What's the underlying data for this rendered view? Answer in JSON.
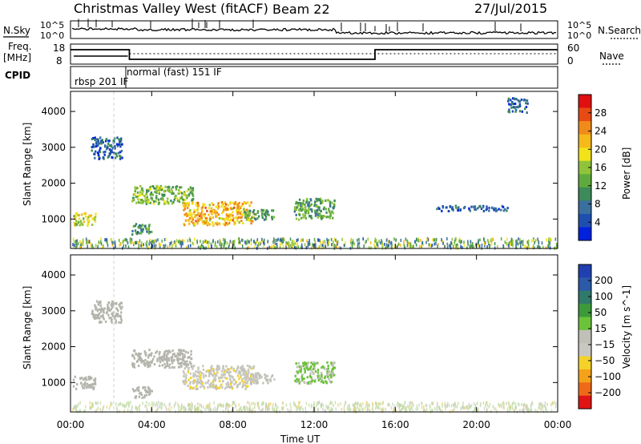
{
  "header": {
    "title": "Christmas Valley West (fitACF)",
    "beam": "Beam 22",
    "date": "27/Jul/2015"
  },
  "strip_labels": {
    "n_sky": "N.Sky",
    "n_search": "N.Search",
    "freq_top": "Freq.",
    "freq_unit": "[MHz]",
    "nave": "Nave",
    "cpid": "CPID"
  },
  "strip_ticks": {
    "noise_left_top": "10^5",
    "noise_left_bottom": "10^0",
    "noise_right_top": "10^5",
    "noise_right_bottom": "10^0",
    "freq_top": "18",
    "freq_bottom": "8",
    "nave_top": "60",
    "nave_bottom": "0"
  },
  "cpid_labels": [
    "rbsp 201 IF",
    "normal (fast) 151 IF"
  ],
  "colors": {
    "scale_power": [
      "#0022dd",
      "#1e4fb0",
      "#3a6fa0",
      "#3d8a5a",
      "#5faa3c",
      "#8fc43a",
      "#f2e21a",
      "#f5b91a",
      "#f08a1a",
      "#e84a14",
      "#e01010"
    ],
    "scale_velocity": [
      "#2040b0",
      "#2a5aa8",
      "#2f7a6a",
      "#3d9a3a",
      "#6cc23a",
      "#c0c0b8",
      "#c8c8c0",
      "#f5d22a",
      "#f5a21a",
      "#ef6a18",
      "#e01414"
    ],
    "ground_scatter": "#b4b4ac"
  },
  "chart_data": [
    {
      "type": "heatmap",
      "title": "Power",
      "xlabel": "",
      "ylabel": "Slant Range [km]",
      "x_ticks": [
        "00:00",
        "04:00",
        "08:00",
        "12:00",
        "16:00",
        "20:00",
        "00:00"
      ],
      "xlim_hours": [
        0,
        24
      ],
      "y_ticks": [
        1000,
        2000,
        3000,
        4000
      ],
      "ylim": [
        180,
        4560
      ],
      "colorbar_label": "Power [dB]",
      "colorbar_ticks": [
        4,
        8,
        12,
        16,
        20,
        24,
        28
      ],
      "colorbar_range": [
        0,
        32
      ],
      "regions": [
        {
          "t0": 0.1,
          "t1": 1.2,
          "r0": 850,
          "r1": 1200,
          "level": 18
        },
        {
          "t0": 1.0,
          "t1": 2.5,
          "r0": 2700,
          "r1": 3300,
          "level": 6
        },
        {
          "t0": 3.0,
          "t1": 6.0,
          "r0": 1450,
          "r1": 1950,
          "level": 14
        },
        {
          "t0": 5.5,
          "t1": 9.0,
          "r0": 850,
          "r1": 1500,
          "level": 22
        },
        {
          "t0": 8.5,
          "t1": 10.0,
          "r0": 1000,
          "r1": 1300,
          "level": 12
        },
        {
          "t0": 11.0,
          "t1": 13.0,
          "r0": 1000,
          "r1": 1600,
          "level": 12
        },
        {
          "t0": 3.0,
          "t1": 4.0,
          "r0": 600,
          "r1": 900,
          "level": 10
        },
        {
          "t0": 18.0,
          "t1": 21.5,
          "r0": 1250,
          "r1": 1400,
          "level": 6
        },
        {
          "t0": 21.5,
          "t1": 22.5,
          "r0": 4000,
          "r1": 4400,
          "level": 6
        }
      ],
      "ground_band": {
        "r0": 200,
        "r1": 400,
        "level": 8
      }
    },
    {
      "type": "heatmap",
      "title": "Velocity",
      "xlabel": "Time UT",
      "ylabel": "Slant Range [km]",
      "x_ticks": [
        "00:00",
        "04:00",
        "08:00",
        "12:00",
        "16:00",
        "20:00",
        "00:00"
      ],
      "xlim_hours": [
        0,
        24
      ],
      "y_ticks": [
        1000,
        2000,
        3000,
        4000
      ],
      "ylim": [
        180,
        4560
      ],
      "colorbar_label": "Velocity [m s^-1]",
      "colorbar_ticks": [
        200,
        100,
        50,
        15,
        -15,
        -50,
        -100,
        -200
      ],
      "regions": [
        {
          "t0": 0.1,
          "t1": 1.2,
          "r0": 850,
          "r1": 1200,
          "level": 0
        },
        {
          "t0": 1.0,
          "t1": 2.5,
          "r0": 2700,
          "r1": 3300,
          "level": 0
        },
        {
          "t0": 3.0,
          "t1": 6.0,
          "r0": 1450,
          "r1": 1950,
          "level": 0
        },
        {
          "t0": 5.5,
          "t1": 9.0,
          "r0": 850,
          "r1": 1500,
          "level": -40
        },
        {
          "t0": 8.5,
          "t1": 10.0,
          "r0": 1000,
          "r1": 1300,
          "level": -20
        },
        {
          "t0": 11.0,
          "t1": 13.0,
          "r0": 1000,
          "r1": 1600,
          "level": 30
        },
        {
          "t0": 3.0,
          "t1": 4.0,
          "r0": 600,
          "r1": 900,
          "level": 0
        }
      ]
    }
  ]
}
